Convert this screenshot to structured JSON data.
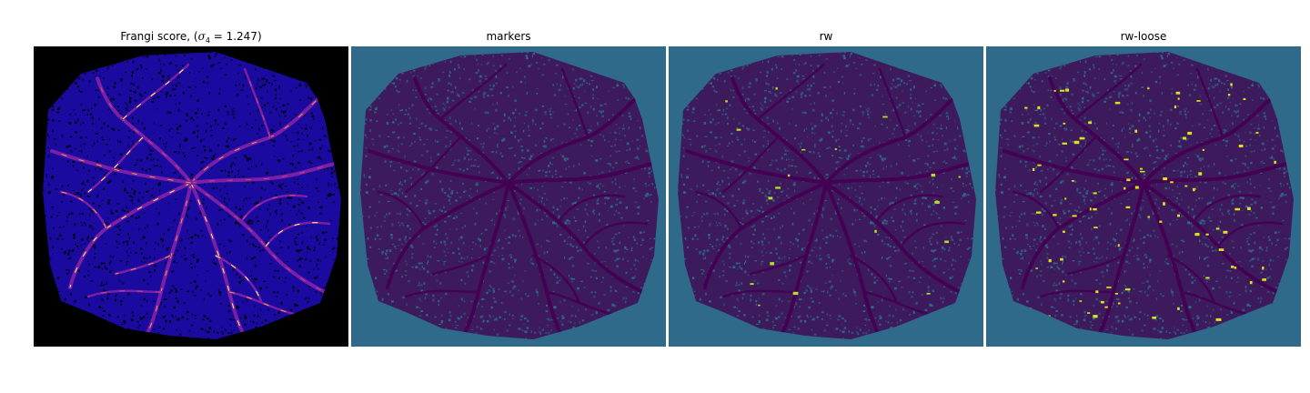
{
  "figure": {
    "panels": [
      {
        "id": "frangi",
        "title_prefix": "Frangi score, (",
        "title_symbol": "σ",
        "title_subscript": "4",
        "title_suffix": " = 1.247)",
        "colormap": "plasma",
        "background": "#000000",
        "fill": "#1a0aa0",
        "vessel_colors": [
          "#2a0c78",
          "#7a1fa6",
          "#cc4778",
          "#f89441",
          "#fdfd7e"
        ]
      },
      {
        "id": "markers",
        "title": "markers",
        "colormap": "viridis",
        "background": "#2f6a8b",
        "fill": "#3c1a5c",
        "vessel_colors": [
          "#440154"
        ]
      },
      {
        "id": "rw",
        "title": "rw",
        "colormap": "viridis",
        "background": "#2f6a8b",
        "fill": "#3c1a5c",
        "vessel_colors": [
          "#440154"
        ],
        "highlight": "#b5de2b"
      },
      {
        "id": "rw-loose",
        "title": "rw-loose",
        "colormap": "viridis",
        "background": "#2f6a8b",
        "fill": "#3c1a5c",
        "vessel_colors": [
          "#440154"
        ],
        "highlight": "#dde318"
      }
    ]
  }
}
